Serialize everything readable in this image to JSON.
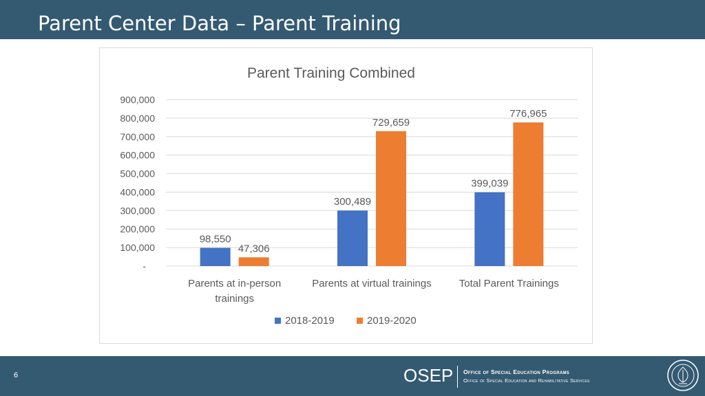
{
  "slide": {
    "title": "Parent Center Data – Parent Training",
    "page_number": "6"
  },
  "footer": {
    "logo_text": "OSEP",
    "office_name": "Office of Special Education Programs",
    "office_subtitle": "Office of Special Education and Rehabilitative Services",
    "seal_icon": "department-seal-icon"
  },
  "colors": {
    "header_bg": "#345a72",
    "series_2018_2019": "#4472c4",
    "series_2019_2020": "#ed7d31"
  },
  "chart_data": {
    "type": "bar",
    "title": "Parent Training Combined",
    "categories": [
      [
        "Parents at in-person",
        "trainings"
      ],
      [
        "Parents at virtual trainings"
      ],
      [
        "Total Parent Trainings"
      ]
    ],
    "series": [
      {
        "name": "2018-2019",
        "color": "#4472c4",
        "values": [
          98550,
          300489,
          399039
        ],
        "labels": [
          "98,550",
          "300,489",
          "399,039"
        ]
      },
      {
        "name": "2019-2020",
        "color": "#ed7d31",
        "values": [
          47306,
          729659,
          776965
        ],
        "labels": [
          "47,306",
          "729,659",
          "776,965"
        ]
      }
    ],
    "ylim": [
      0,
      900000
    ],
    "yticks": [
      0,
      100000,
      200000,
      300000,
      400000,
      500000,
      600000,
      700000,
      800000,
      900000
    ],
    "ytick_labels": [
      "-",
      "100,000",
      "200,000",
      "300,000",
      "400,000",
      "500,000",
      "600,000",
      "700,000",
      "800,000",
      "900,000"
    ],
    "grid": true,
    "legend_position": "bottom"
  }
}
